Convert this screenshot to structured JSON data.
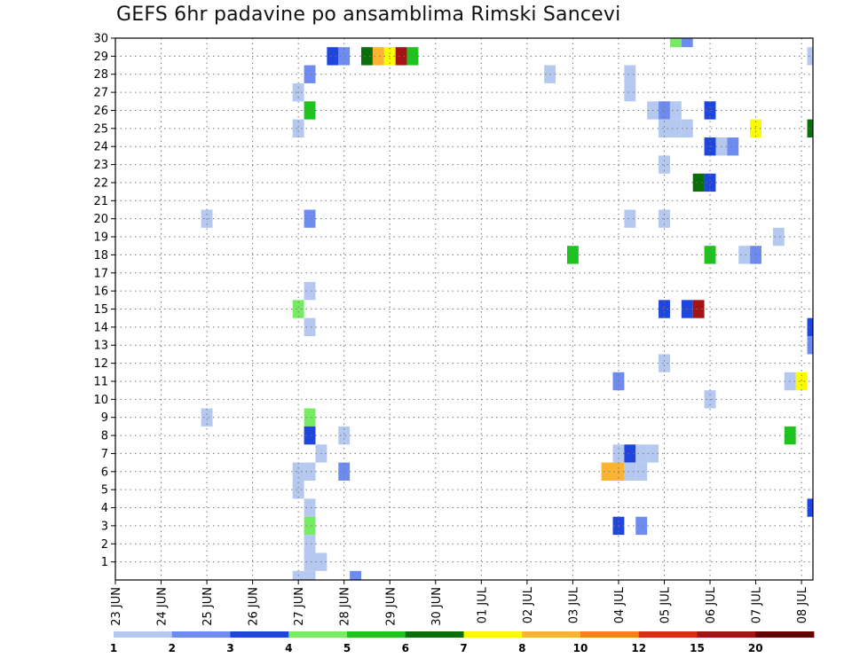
{
  "chart_data": {
    "type": "heatmap",
    "title": "GEFS 6hr padavine po ansamblima Rimski Sancevi",
    "xlabel": "",
    "ylabel": "",
    "grid": true,
    "x_axis": {
      "start_day": "23 JUN",
      "steps_per_day": 4,
      "tick_labels": [
        "23 JUN",
        "24 JUN",
        "25 JUN",
        "26 JUN",
        "27 JUN",
        "28 JUN",
        "29 JUN",
        "30 JUN",
        "01 JUL",
        "02 JUL",
        "03 JUL",
        "04 JUL",
        "05 JUL",
        "06 JUL",
        "07 JUL",
        "08 JUL"
      ],
      "range_steps": [
        0,
        61
      ]
    },
    "y_axis": {
      "members": [
        1,
        2,
        3,
        4,
        5,
        6,
        7,
        8,
        9,
        10,
        11,
        12,
        13,
        14,
        15,
        16,
        17,
        18,
        19,
        20,
        21,
        22,
        23,
        24,
        25,
        26,
        27,
        28,
        29,
        30
      ],
      "range": [
        0,
        30
      ]
    },
    "colorbar": {
      "labels": [
        "1",
        "2",
        "3",
        "4",
        "5",
        "6",
        "7",
        "8",
        "10",
        "12",
        "15",
        "20"
      ],
      "colors": [
        "#b4c8f0",
        "#6e8cf0",
        "#1e46dc",
        "#78eb64",
        "#1ec31e",
        "#0a6e0a",
        "#fafa00",
        "#fab432",
        "#f58214",
        "#dc2d14",
        "#a51414",
        "#640000"
      ]
    },
    "value_unit": "colour class index (0 = class 1-2 … 11 = class >20)",
    "cells_columns": [
      "member",
      "time_step",
      "class"
    ],
    "cells": [
      [
        30,
        49,
        3
      ],
      [
        30,
        50,
        1
      ],
      [
        29,
        19,
        2
      ],
      [
        29,
        20,
        1
      ],
      [
        29,
        22,
        5
      ],
      [
        29,
        23,
        7
      ],
      [
        29,
        24,
        6
      ],
      [
        29,
        25,
        10
      ],
      [
        29,
        26,
        4
      ],
      [
        29,
        61,
        0
      ],
      [
        28,
        17,
        1
      ],
      [
        28,
        38,
        0
      ],
      [
        28,
        45,
        0
      ],
      [
        27,
        16,
        0
      ],
      [
        27,
        45,
        0
      ],
      [
        26,
        17,
        4
      ],
      [
        26,
        47,
        0
      ],
      [
        26,
        48,
        1
      ],
      [
        26,
        49,
        0
      ],
      [
        26,
        52,
        2
      ],
      [
        25,
        16,
        0
      ],
      [
        25,
        48,
        0
      ],
      [
        25,
        49,
        0
      ],
      [
        25,
        50,
        0
      ],
      [
        25,
        56,
        6
      ],
      [
        25,
        61,
        5
      ],
      [
        24,
        52,
        2
      ],
      [
        24,
        53,
        0
      ],
      [
        24,
        54,
        1
      ],
      [
        23,
        48,
        0
      ],
      [
        22,
        51,
        5
      ],
      [
        22,
        52,
        2
      ],
      [
        20,
        8,
        0
      ],
      [
        20,
        17,
        1
      ],
      [
        20,
        45,
        0
      ],
      [
        20,
        48,
        0
      ],
      [
        19,
        58,
        0
      ],
      [
        18,
        40,
        4
      ],
      [
        18,
        52,
        4
      ],
      [
        18,
        55,
        0
      ],
      [
        18,
        56,
        1
      ],
      [
        16,
        17,
        0
      ],
      [
        15,
        16,
        3
      ],
      [
        15,
        48,
        2
      ],
      [
        15,
        50,
        2
      ],
      [
        15,
        51,
        10
      ],
      [
        14,
        17,
        0
      ],
      [
        14,
        61,
        2
      ],
      [
        13,
        61,
        1
      ],
      [
        12,
        48,
        0
      ],
      [
        11,
        44,
        1
      ],
      [
        11,
        59,
        0
      ],
      [
        11,
        60,
        6
      ],
      [
        10,
        52,
        0
      ],
      [
        9,
        8,
        0
      ],
      [
        9,
        17,
        3
      ],
      [
        8,
        17,
        2
      ],
      [
        8,
        20,
        0
      ],
      [
        8,
        59,
        4
      ],
      [
        7,
        18,
        0
      ],
      [
        7,
        44,
        0
      ],
      [
        7,
        45,
        2
      ],
      [
        7,
        46,
        0
      ],
      [
        7,
        47,
        0
      ],
      [
        6,
        16,
        0
      ],
      [
        6,
        17,
        0
      ],
      [
        6,
        20,
        1
      ],
      [
        6,
        43,
        7
      ],
      [
        6,
        44,
        7
      ],
      [
        6,
        45,
        0
      ],
      [
        6,
        46,
        0
      ],
      [
        5,
        16,
        0
      ],
      [
        4,
        17,
        0
      ],
      [
        4,
        61,
        2
      ],
      [
        3,
        17,
        3
      ],
      [
        3,
        44,
        2
      ],
      [
        3,
        46,
        1
      ],
      [
        2,
        17,
        0
      ],
      [
        1,
        17,
        0
      ],
      [
        1,
        18,
        0
      ],
      [
        0,
        16,
        0
      ],
      [
        0,
        17,
        0
      ],
      [
        0,
        21,
        1
      ]
    ]
  }
}
